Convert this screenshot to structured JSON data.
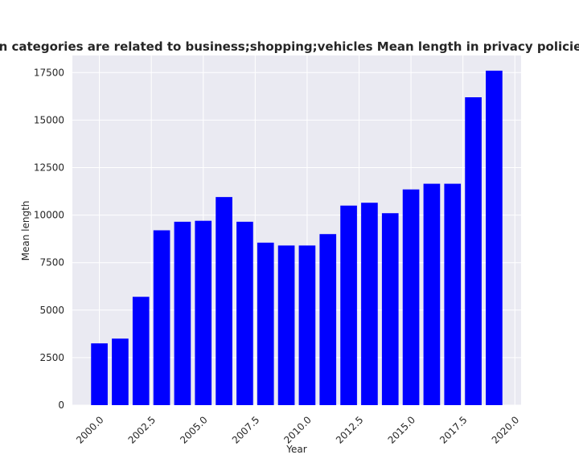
{
  "chart_data": {
    "type": "bar",
    "title": "when categories are related to business;shopping;vehicles Mean length in privacy policies by Y",
    "xlabel": "Year",
    "ylabel": "Mean length",
    "x": [
      2000,
      2001,
      2002,
      2003,
      2004,
      2005,
      2006,
      2007,
      2008,
      2009,
      2010,
      2011,
      2012,
      2013,
      2014,
      2015,
      2016,
      2017,
      2018,
      2019
    ],
    "values": [
      3250,
      3500,
      5700,
      9200,
      9650,
      9700,
      10950,
      9650,
      8550,
      8400,
      8400,
      9000,
      10500,
      10650,
      10100,
      11350,
      11650,
      11650,
      16200,
      17600
    ],
    "xlim": [
      1998.7,
      2020.3
    ],
    "ylim": [
      0,
      18400
    ],
    "xticks": [
      "2000.0",
      "2002.5",
      "2005.0",
      "2007.5",
      "2010.0",
      "2012.5",
      "2015.0",
      "2017.5",
      "2020.0"
    ],
    "xtick_values": [
      2000,
      2002.5,
      2005,
      2007.5,
      2010,
      2012.5,
      2015,
      2017.5,
      2020
    ],
    "yticks": [
      "0",
      "2500",
      "5000",
      "7500",
      "10000",
      "12500",
      "15000",
      "17500"
    ],
    "ytick_values": [
      0,
      2500,
      5000,
      7500,
      10000,
      12500,
      15000,
      17500
    ],
    "grid": true,
    "colors": {
      "bar": "#0000ff",
      "plot_bg": "#eaeaf2",
      "grid": "#ffffff",
      "text": "#262626"
    }
  }
}
